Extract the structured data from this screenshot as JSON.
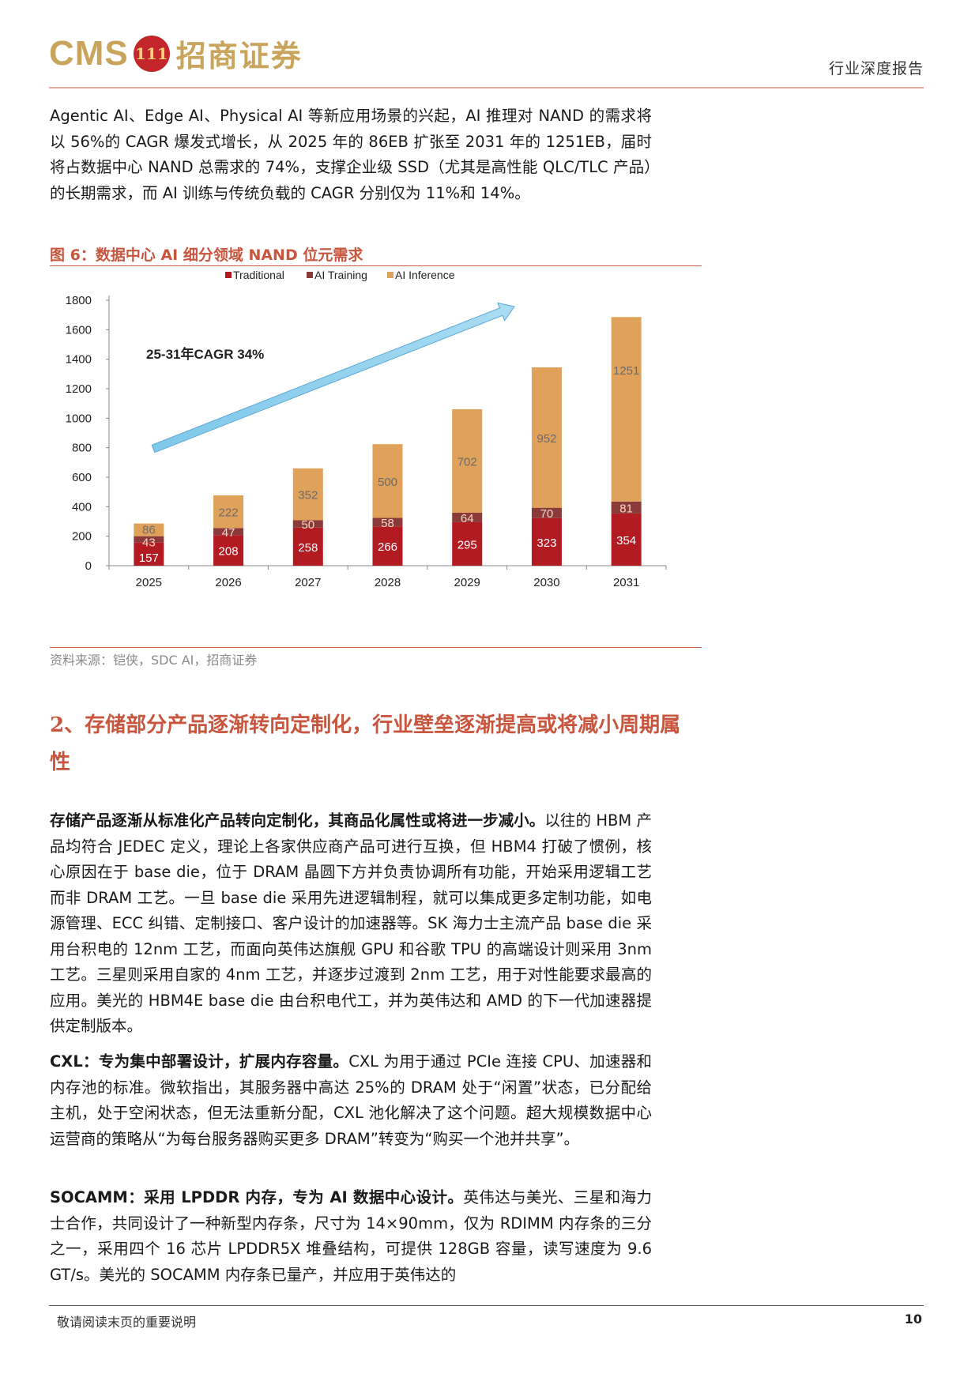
{
  "header": {
    "logo_text": "CMS",
    "logo_seal": "111",
    "logo_cn": "招商证券",
    "report_type": "行业深度报告"
  },
  "intro": {
    "text": "Agentic AI、Edge AI、Physical AI 等新应用场景的兴起，AI 推理对 NAND 的需求将以 56%的 CAGR 爆发式增长，从 2025 年的 86EB 扩张至 2031 年的 1251EB，届时将占数据中心 NAND 总需求的 74%，支撑企业级 SSD（尤其是高性能 QLC/TLC 产品）的长期需求，而 AI 训练与传统负载的 CAGR 分别仅为 11%和 14%。"
  },
  "figure": {
    "title": "图 6：数据中心 AI 细分领域 NAND 位元需求",
    "source": "资料来源：铠侠，SDC AI，招商证券"
  },
  "chart_data": {
    "type": "bar",
    "stacked": true,
    "categories": [
      "2025",
      "2026",
      "2027",
      "2028",
      "2029",
      "2030",
      "2031"
    ],
    "series": [
      {
        "name": "Traditional",
        "color": "#b31b23",
        "values": [
          157,
          208,
          258,
          266,
          295,
          323,
          354
        ]
      },
      {
        "name": "AI Training",
        "color": "#8b3a3a",
        "values": [
          43,
          47,
          50,
          58,
          64,
          70,
          81
        ]
      },
      {
        "name": "AI Inference",
        "color": "#e0a15a",
        "values": [
          86,
          222,
          352,
          500,
          702,
          952,
          1251
        ]
      }
    ],
    "yticks": [
      0,
      200,
      400,
      600,
      800,
      1000,
      1200,
      1400,
      1600,
      1800
    ],
    "ylim": [
      0,
      1800
    ],
    "legend_position": "top",
    "annotation": "25-31年CAGR 34%",
    "grid": false
  },
  "section": {
    "heading": "2、存储部分产品逐渐转向定制化，行业壁垒逐渐提高或将减小周期属性"
  },
  "para_custom": {
    "lead": "存储产品逐渐从标准化产品转向定制化，其商品化属性或将进一步减小。",
    "text": "以往的 HBM 产品均符合 JEDEC 定义，理论上各家供应商产品可进行互换，但 HBM4 打破了惯例，核心原因在于 base die，位于 DRAM 晶圆下方并负责协调所有功能，开始采用逻辑工艺而非 DRAM 工艺。一旦 base die 采用先进逻辑制程，就可以集成更多定制功能，如电源管理、ECC 纠错、定制接口、客户设计的加速器等。SK 海力士主流产品 base die 采用台积电的 12nm 工艺，而面向英伟达旗舰 GPU 和谷歌 TPU 的高端设计则采用 3nm 工艺。三星则采用自家的 4nm 工艺，并逐步过渡到 2nm 工艺，用于对性能要求最高的应用。美光的 HBM4E base die 由台积电代工，并为英伟达和 AMD 的下一代加速器提供定制版本。"
  },
  "para_cxl": {
    "lead": "CXL：专为集中部署设计，扩展内存容量。",
    "text": "CXL 为用于通过 PCIe 连接 CPU、加速器和内存池的标准。微软指出，其服务器中高达 25%的 DRAM 处于“闲置”状态，已分配给主机，处于空闲状态，但无法重新分配，CXL 池化解决了这个问题。超大规模数据中心运营商的策略从“为每台服务器购买更多 DRAM”转变为“购买一个池并共享”。"
  },
  "para_socamm": {
    "lead": "SOCAMM：采用 LPDDR 内存，专为 AI 数据中心设计。",
    "text": "英伟达与美光、三星和海力士合作，共同设计了一种新型内存条，尺寸为 14×90mm，仅为 RDIMM 内存条的三分之一，采用四个 16 芯片 LPDDR5X 堆叠结构，可提供 128GB 容量，读写速度为 9.6 GT/s。美光的 SOCAMM 内存条已量产，并应用于英伟达的"
  },
  "footer": {
    "note": "敬请阅读末页的重要说明",
    "page": "10"
  }
}
